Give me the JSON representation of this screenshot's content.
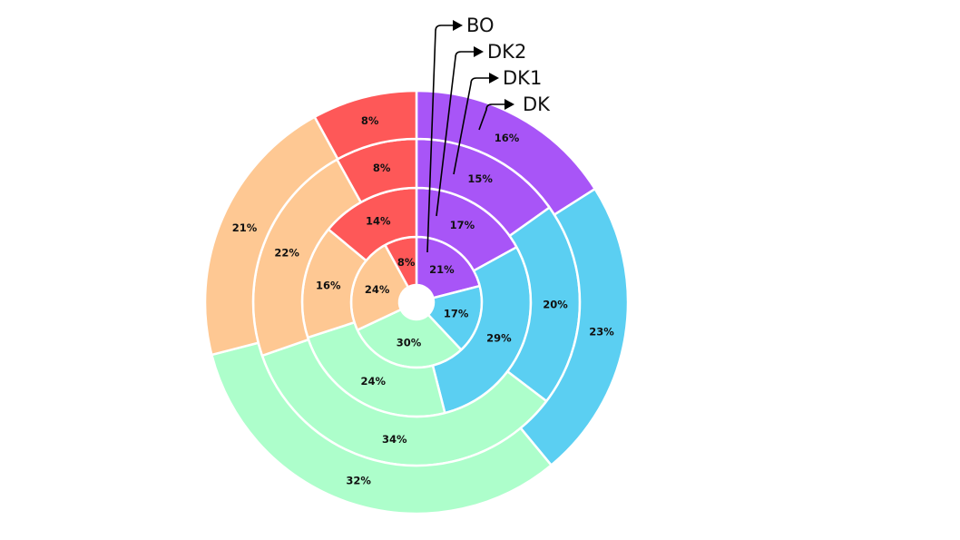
{
  "chart_data": {
    "type": "pie",
    "subtype": "nested-donut",
    "title": "",
    "categories": [
      "purple",
      "blue",
      "green",
      "orange",
      "red"
    ],
    "colors": [
      "#a855f7",
      "#5bcff2",
      "#adfecb",
      "#fec893",
      "#fe5858"
    ],
    "start_angle_deg": 90,
    "direction": "clockwise",
    "rings_inner_to_outer": [
      {
        "name": "BO",
        "values": [
          21,
          17,
          30,
          24,
          8
        ]
      },
      {
        "name": "DK2",
        "values": [
          17,
          29,
          24,
          16,
          14
        ]
      },
      {
        "name": "DK1",
        "values": [
          15,
          20,
          34,
          22,
          8
        ]
      },
      {
        "name": "DK",
        "values": [
          16,
          23,
          32,
          21,
          8
        ]
      }
    ],
    "value_suffix": "%"
  }
}
